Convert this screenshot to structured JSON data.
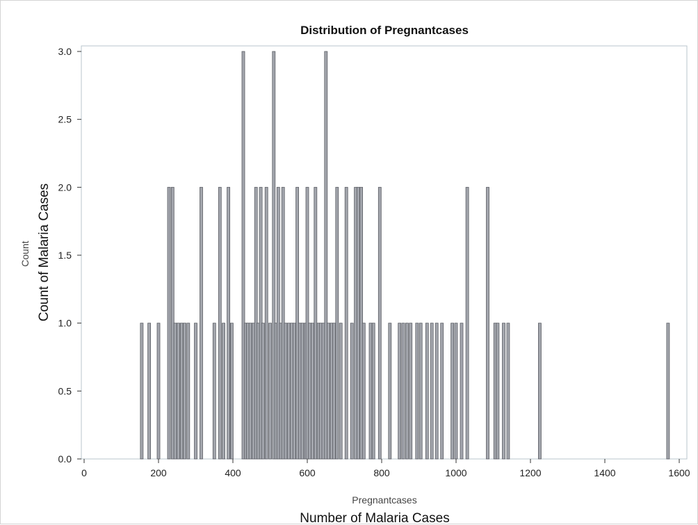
{
  "chart_data": {
    "type": "bar",
    "title": "Distribution of Pregnantcases",
    "xlabel": "Pregnantcases",
    "xlabel_overlay": "Number of Malaria Cases",
    "ylabel": "Count",
    "ylabel_overlay": "Count of Malaria Cases",
    "xlim": [
      0,
      1600
    ],
    "ylim": [
      0,
      3
    ],
    "xticks": [
      "0",
      "200",
      "400",
      "600",
      "800",
      "1000",
      "1200",
      "1400",
      "1600"
    ],
    "yticks": [
      "0.0",
      "0.5",
      "1.0",
      "1.5",
      "2.0",
      "2.5",
      "3.0"
    ],
    "grid": false,
    "bar_color": "#a3a6ad",
    "bar_edge_color": "#5a5d63",
    "points": [
      {
        "x": 155,
        "y": 1
      },
      {
        "x": 175,
        "y": 1
      },
      {
        "x": 200,
        "y": 1
      },
      {
        "x": 228,
        "y": 2
      },
      {
        "x": 238,
        "y": 2
      },
      {
        "x": 245,
        "y": 1
      },
      {
        "x": 253,
        "y": 1
      },
      {
        "x": 262,
        "y": 1
      },
      {
        "x": 270,
        "y": 1
      },
      {
        "x": 280,
        "y": 1
      },
      {
        "x": 300,
        "y": 1
      },
      {
        "x": 315,
        "y": 2
      },
      {
        "x": 350,
        "y": 1
      },
      {
        "x": 365,
        "y": 2
      },
      {
        "x": 375,
        "y": 1
      },
      {
        "x": 388,
        "y": 2
      },
      {
        "x": 397,
        "y": 1
      },
      {
        "x": 428,
        "y": 3
      },
      {
        "x": 435,
        "y": 1
      },
      {
        "x": 440,
        "y": 1
      },
      {
        "x": 447,
        "y": 1
      },
      {
        "x": 455,
        "y": 1
      },
      {
        "x": 462,
        "y": 2
      },
      {
        "x": 468,
        "y": 1
      },
      {
        "x": 475,
        "y": 2
      },
      {
        "x": 481,
        "y": 1
      },
      {
        "x": 490,
        "y": 2
      },
      {
        "x": 500,
        "y": 1
      },
      {
        "x": 510,
        "y": 3
      },
      {
        "x": 516,
        "y": 1
      },
      {
        "x": 522,
        "y": 2
      },
      {
        "x": 529,
        "y": 1
      },
      {
        "x": 535,
        "y": 2
      },
      {
        "x": 542,
        "y": 1
      },
      {
        "x": 550,
        "y": 1
      },
      {
        "x": 558,
        "y": 1
      },
      {
        "x": 565,
        "y": 1
      },
      {
        "x": 573,
        "y": 2
      },
      {
        "x": 580,
        "y": 1
      },
      {
        "x": 587,
        "y": 1
      },
      {
        "x": 595,
        "y": 1
      },
      {
        "x": 600,
        "y": 2
      },
      {
        "x": 607,
        "y": 1
      },
      {
        "x": 614,
        "y": 1
      },
      {
        "x": 622,
        "y": 2
      },
      {
        "x": 630,
        "y": 1
      },
      {
        "x": 636,
        "y": 1
      },
      {
        "x": 643,
        "y": 1
      },
      {
        "x": 650,
        "y": 3
      },
      {
        "x": 657,
        "y": 1
      },
      {
        "x": 665,
        "y": 1
      },
      {
        "x": 672,
        "y": 1
      },
      {
        "x": 680,
        "y": 2
      },
      {
        "x": 690,
        "y": 1
      },
      {
        "x": 705,
        "y": 2
      },
      {
        "x": 720,
        "y": 1
      },
      {
        "x": 730,
        "y": 2
      },
      {
        "x": 737,
        "y": 2
      },
      {
        "x": 745,
        "y": 2
      },
      {
        "x": 752,
        "y": 1
      },
      {
        "x": 770,
        "y": 1
      },
      {
        "x": 778,
        "y": 1
      },
      {
        "x": 795,
        "y": 2
      },
      {
        "x": 822,
        "y": 1
      },
      {
        "x": 848,
        "y": 1
      },
      {
        "x": 858,
        "y": 1
      },
      {
        "x": 868,
        "y": 1
      },
      {
        "x": 878,
        "y": 1
      },
      {
        "x": 895,
        "y": 1
      },
      {
        "x": 905,
        "y": 1
      },
      {
        "x": 922,
        "y": 1
      },
      {
        "x": 935,
        "y": 1
      },
      {
        "x": 948,
        "y": 1
      },
      {
        "x": 962,
        "y": 1
      },
      {
        "x": 990,
        "y": 1
      },
      {
        "x": 1000,
        "y": 1
      },
      {
        "x": 1015,
        "y": 1
      },
      {
        "x": 1030,
        "y": 2
      },
      {
        "x": 1085,
        "y": 2
      },
      {
        "x": 1105,
        "y": 1
      },
      {
        "x": 1112,
        "y": 1
      },
      {
        "x": 1128,
        "y": 1
      },
      {
        "x": 1140,
        "y": 1
      },
      {
        "x": 1225,
        "y": 1
      },
      {
        "x": 1570,
        "y": 1
      }
    ]
  }
}
